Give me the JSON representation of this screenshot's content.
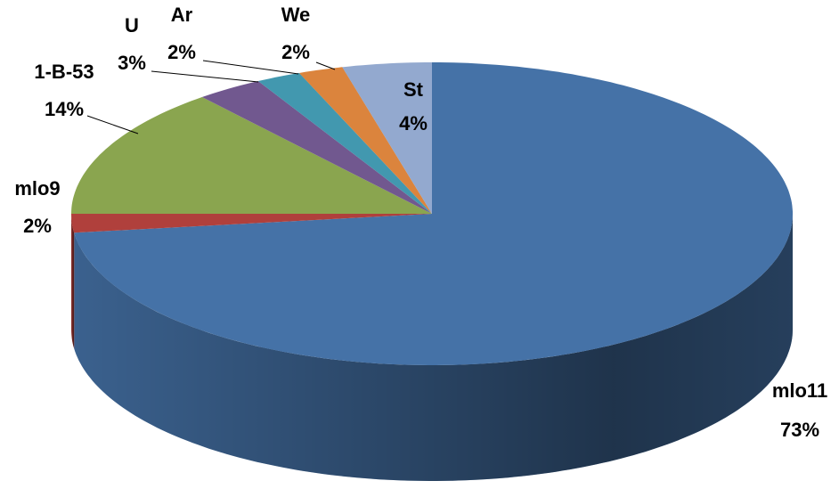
{
  "chart_data": {
    "type": "pie",
    "categories": [
      "mlo11",
      "mlo9",
      "1-B-53",
      "U",
      "Ar",
      "We",
      "St"
    ],
    "values": [
      73,
      2,
      14,
      3,
      2,
      2,
      4
    ],
    "value_labels": [
      "73%",
      "2%",
      "14%",
      "3%",
      "2%",
      "2%",
      "4%"
    ],
    "colors": [
      "#4572a7",
      "#b0403c",
      "#8aa54f",
      "#71588f",
      "#4298af",
      "#db843d",
      "#93a9cf"
    ]
  }
}
